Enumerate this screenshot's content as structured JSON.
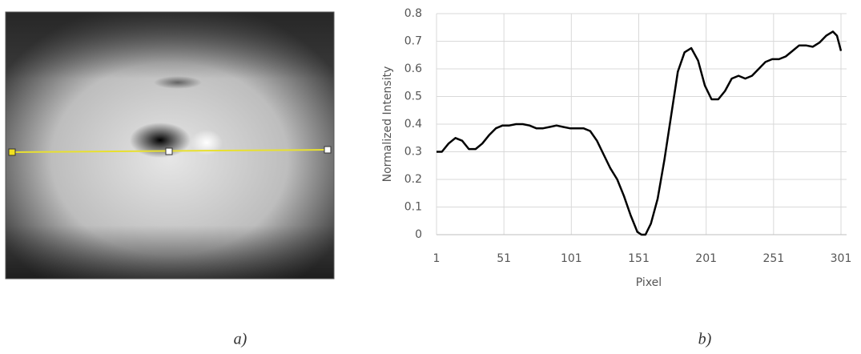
{
  "chart_data": {
    "type": "line",
    "x_label": "Pixel",
    "y_label": "Normalized Intensity",
    "x": [
      1,
      5,
      10,
      15,
      20,
      25,
      30,
      35,
      40,
      45,
      50,
      55,
      60,
      65,
      70,
      75,
      80,
      85,
      90,
      95,
      100,
      105,
      110,
      115,
      120,
      125,
      130,
      135,
      140,
      145,
      150,
      153,
      156,
      160,
      165,
      170,
      175,
      180,
      185,
      190,
      195,
      200,
      205,
      210,
      215,
      220,
      225,
      230,
      235,
      240,
      245,
      250,
      255,
      260,
      265,
      270,
      275,
      280,
      285,
      290,
      295,
      298,
      301
    ],
    "values": [
      0.3,
      0.3,
      0.33,
      0.35,
      0.34,
      0.31,
      0.31,
      0.33,
      0.36,
      0.385,
      0.395,
      0.395,
      0.4,
      0.4,
      0.395,
      0.385,
      0.385,
      0.39,
      0.395,
      0.39,
      0.385,
      0.385,
      0.385,
      0.375,
      0.34,
      0.29,
      0.24,
      0.2,
      0.14,
      0.07,
      0.01,
      0.0,
      0.0,
      0.04,
      0.13,
      0.27,
      0.43,
      0.59,
      0.66,
      0.675,
      0.63,
      0.54,
      0.49,
      0.49,
      0.52,
      0.565,
      0.575,
      0.565,
      0.575,
      0.6,
      0.625,
      0.635,
      0.635,
      0.645,
      0.665,
      0.685,
      0.685,
      0.68,
      0.695,
      0.72,
      0.735,
      0.72,
      0.665
    ],
    "color": "#000000",
    "xlim": [
      1,
      301
    ],
    "xticks": [
      1,
      51,
      101,
      151,
      201,
      251,
      301
    ],
    "ylim": [
      0,
      0.8
    ],
    "yticks": [
      0,
      0.1,
      0.2,
      0.3,
      0.4,
      0.5,
      0.6,
      0.7,
      0.8
    ],
    "grid": true
  },
  "figure": {
    "captions": [
      "a)",
      "b)"
    ]
  }
}
